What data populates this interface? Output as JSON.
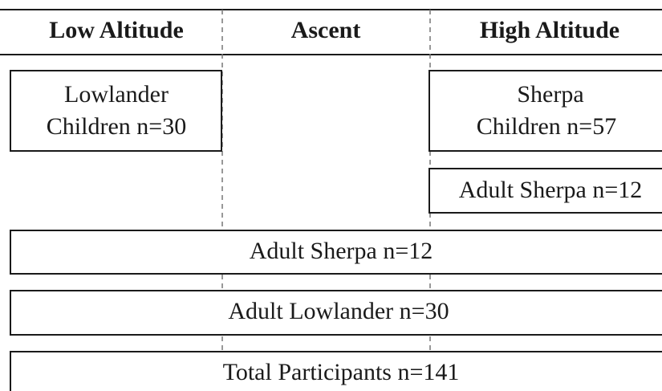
{
  "header": {
    "columns": [
      "Low Altitude",
      "Ascent",
      "High Altitude"
    ]
  },
  "boxes": [
    {
      "lines": [
        "Lowlander",
        "Children n=30"
      ]
    },
    {
      "lines": [
        "Sherpa",
        "Children n=57"
      ]
    },
    {
      "lines": [
        "Adult Sherpa n=12"
      ]
    },
    {
      "lines": [
        "Adult Sherpa n=12"
      ]
    },
    {
      "lines": [
        "Adult Lowlander n=30"
      ]
    },
    {
      "lines": [
        "Total Participants n=141"
      ]
    }
  ]
}
